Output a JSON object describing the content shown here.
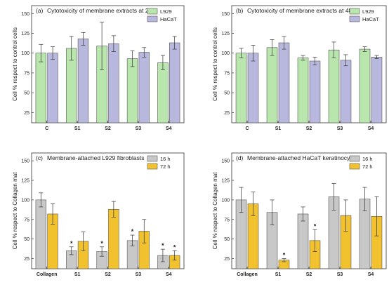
{
  "chart_data": [
    {
      "type": "bar",
      "panel_label": "(a)",
      "title": "Cytotoxicity of membrane extracts at 24h",
      "ylabel": "Cell % respect to control cells",
      "xlabel": "",
      "ylim": [
        0,
        150
      ],
      "yticks": [
        "25",
        "50",
        "75",
        "100",
        "125",
        "150"
      ],
      "categories": [
        "C",
        "S1",
        "S2",
        "S3",
        "S4"
      ],
      "legend_position": "top-right",
      "series": [
        {
          "name": "L929",
          "color": "#b8e6ad",
          "values": [
            100,
            106,
            109,
            93,
            88
          ],
          "errors": [
            11,
            15,
            30,
            10,
            9
          ],
          "sig": [
            "",
            "",
            "",
            "",
            ""
          ]
        },
        {
          "name": "HaCaT",
          "color": "#b8b8df",
          "values": [
            100,
            118,
            112,
            101,
            113
          ],
          "errors": [
            8,
            8,
            10,
            6,
            8
          ],
          "sig": [
            "",
            "",
            "",
            "",
            ""
          ]
        }
      ]
    },
    {
      "type": "bar",
      "panel_label": "(b)",
      "title": "Cytotoxicity of membrane extracts at 48h",
      "ylabel": "Cell % respect to control cells",
      "xlabel": "",
      "ylim": [
        0,
        150
      ],
      "yticks": [
        "25",
        "50",
        "75",
        "100",
        "125",
        "150"
      ],
      "categories": [
        "C",
        "S1",
        "S2",
        "S3",
        "S4"
      ],
      "legend_position": "top-right",
      "series": [
        {
          "name": "L929",
          "color": "#b8e6ad",
          "values": [
            100,
            107,
            94,
            104,
            105
          ],
          "errors": [
            6,
            10,
            3,
            10,
            3
          ],
          "sig": [
            "",
            "",
            "",
            "",
            ""
          ]
        },
        {
          "name": "HaCaT",
          "color": "#b8b8df",
          "values": [
            100,
            113,
            90,
            91,
            95
          ],
          "errors": [
            10,
            8,
            5,
            7,
            2
          ],
          "sig": [
            "",
            "",
            "",
            "",
            ""
          ]
        }
      ]
    },
    {
      "type": "bar",
      "panel_label": "(c)",
      "title": "Membrane-attached L929 fibroblasts",
      "ylabel": "Cell % respect to Collagen mat",
      "xlabel": "",
      "ylim": [
        0,
        150
      ],
      "yticks": [
        "25",
        "50",
        "75",
        "100",
        "125",
        "150"
      ],
      "categories": [
        "Collagen",
        "S1",
        "S2",
        "S3",
        "S4"
      ],
      "legend_position": "top-right",
      "series": [
        {
          "name": "16 h",
          "color": "#c8c8c8",
          "values": [
            100,
            35,
            34,
            48,
            29
          ],
          "errors": [
            9,
            5,
            6,
            7,
            8
          ],
          "sig": [
            "",
            "*",
            "*",
            "*",
            "*"
          ]
        },
        {
          "name": "72 h",
          "color": "#f2c12e",
          "values": [
            82,
            47,
            88,
            60,
            29
          ],
          "errors": [
            13,
            12,
            10,
            15,
            6
          ],
          "sig": [
            "",
            "",
            "",
            "",
            "*"
          ]
        }
      ]
    },
    {
      "type": "bar",
      "panel_label": "(d)",
      "title": "Membrane-attached HaCaT keratinocytes",
      "ylabel": "Cell % respect to Collagen mat",
      "xlabel": "",
      "ylim": [
        0,
        150
      ],
      "yticks": [
        "25",
        "50",
        "75",
        "100",
        "125",
        "150"
      ],
      "categories": [
        "Collagen",
        "S1",
        "S2",
        "S3",
        "S4"
      ],
      "legend_position": "top-right",
      "series": [
        {
          "name": "16 h",
          "color": "#c8c8c8",
          "values": [
            100,
            84,
            82,
            104,
            101
          ],
          "errors": [
            16,
            16,
            9,
            17,
            15
          ],
          "sig": [
            "",
            "",
            "",
            "",
            ""
          ]
        },
        {
          "name": "72 h",
          "color": "#f2c12e",
          "values": [
            95,
            23,
            48,
            80,
            79
          ],
          "errors": [
            15,
            2,
            14,
            20,
            25
          ],
          "sig": [
            "",
            "*",
            "*",
            "",
            ""
          ]
        }
      ]
    }
  ]
}
